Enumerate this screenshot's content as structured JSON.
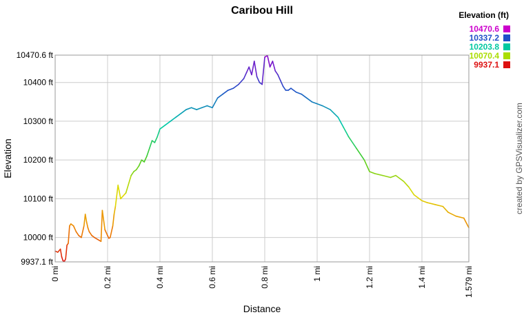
{
  "chart_data": {
    "type": "line",
    "title": "Caribou Hill",
    "xlabel": "Distance",
    "ylabel": "Elevation",
    "x_unit": "mi",
    "y_unit": "ft",
    "xlim": [
      0,
      1.579
    ],
    "ylim": [
      9937.1,
      10470.6
    ],
    "x_ticks": [
      {
        "value": 0,
        "label": "0 mi"
      },
      {
        "value": 0.2,
        "label": "0.2 mi"
      },
      {
        "value": 0.4,
        "label": "0.4 mi"
      },
      {
        "value": 0.6,
        "label": "0.6 mi"
      },
      {
        "value": 0.8,
        "label": "0.8 mi"
      },
      {
        "value": 1.0,
        "label": "1 mi"
      },
      {
        "value": 1.2,
        "label": "1.2 mi"
      },
      {
        "value": 1.4,
        "label": "1.4 mi"
      },
      {
        "value": 1.579,
        "label": "1.579 mi"
      }
    ],
    "y_ticks": [
      {
        "value": 9937.1,
        "label": "9937.1 ft"
      },
      {
        "value": 10000,
        "label": "10000 ft"
      },
      {
        "value": 10100,
        "label": "10100 ft"
      },
      {
        "value": 10200,
        "label": "10200 ft"
      },
      {
        "value": 10300,
        "label": "10300 ft"
      },
      {
        "value": 10400,
        "label": "10400 ft"
      },
      {
        "value": 10470.6,
        "label": "10470.6 ft"
      }
    ],
    "grid": true,
    "legend": {
      "title": "Elevation (ft)",
      "placement": "top-right",
      "items": [
        {
          "label": "10470.6",
          "color": "#cc00cc"
        },
        {
          "label": "10337.2",
          "color": "#1f4fc8"
        },
        {
          "label": "10203.8",
          "color": "#00c8a0"
        },
        {
          "label": "10070.4",
          "color": "#aadd00"
        },
        {
          "label": "9937.1",
          "color": "#dd1111"
        }
      ]
    },
    "color_scale": {
      "min": 9937.1,
      "max": 10470.6,
      "stops": [
        "#dd1111",
        "#ee8800",
        "#dddd00",
        "#44cc22",
        "#00ccaa",
        "#1f4fc8",
        "#9900cc"
      ]
    },
    "series": [
      {
        "x": [
          0,
          0.01,
          0.02,
          0.025,
          0.03,
          0.035,
          0.04,
          0.045,
          0.05,
          0.055,
          0.06,
          0.07,
          0.08,
          0.09,
          0.1,
          0.11,
          0.115,
          0.12,
          0.125,
          0.13,
          0.14,
          0.15,
          0.175,
          0.18,
          0.19,
          0.2,
          0.205,
          0.21,
          0.22,
          0.225,
          0.23,
          0.24,
          0.25,
          0.27,
          0.29,
          0.3,
          0.31,
          0.32,
          0.33,
          0.34,
          0.35,
          0.36,
          0.37,
          0.38,
          0.39,
          0.4,
          0.42,
          0.44,
          0.46,
          0.48,
          0.5,
          0.52,
          0.54,
          0.56,
          0.58,
          0.6,
          0.62,
          0.64,
          0.66,
          0.68,
          0.7,
          0.72,
          0.73,
          0.74,
          0.75,
          0.76,
          0.77,
          0.78,
          0.79,
          0.8,
          0.81,
          0.82,
          0.83,
          0.84,
          0.85,
          0.86,
          0.87,
          0.88,
          0.89,
          0.9,
          0.92,
          0.94,
          0.96,
          0.98,
          1.0,
          1.02,
          1.05,
          1.08,
          1.1,
          1.12,
          1.15,
          1.18,
          1.2,
          1.22,
          1.25,
          1.28,
          1.3,
          1.33,
          1.35,
          1.37,
          1.4,
          1.42,
          1.45,
          1.48,
          1.5,
          1.53,
          1.56,
          1.579
        ],
        "y": [
          9965,
          9962,
          9970,
          9950,
          9940,
          9938,
          9945,
          9980,
          9985,
          10030,
          10035,
          10030,
          10015,
          10005,
          10000,
          10030,
          10060,
          10040,
          10025,
          10015,
          10005,
          10000,
          9990,
          10070,
          10020,
          10005,
          9998,
          10000,
          10030,
          10060,
          10080,
          10135,
          10100,
          10115,
          10160,
          10170,
          10175,
          10185,
          10200,
          10195,
          10210,
          10230,
          10250,
          10245,
          10260,
          10280,
          10290,
          10300,
          10310,
          10320,
          10330,
          10335,
          10330,
          10335,
          10340,
          10335,
          10360,
          10370,
          10380,
          10385,
          10395,
          10410,
          10425,
          10440,
          10420,
          10455,
          10415,
          10400,
          10395,
          10465,
          10470,
          10440,
          10455,
          10430,
          10420,
          10405,
          10390,
          10380,
          10380,
          10385,
          10375,
          10370,
          10360,
          10350,
          10345,
          10340,
          10330,
          10310,
          10285,
          10260,
          10230,
          10200,
          10170,
          10165,
          10160,
          10155,
          10160,
          10145,
          10130,
          10110,
          10095,
          10090,
          10085,
          10080,
          10065,
          10055,
          10050,
          10025
        ]
      }
    ]
  },
  "credit": "created by GPSVisualizer.com"
}
